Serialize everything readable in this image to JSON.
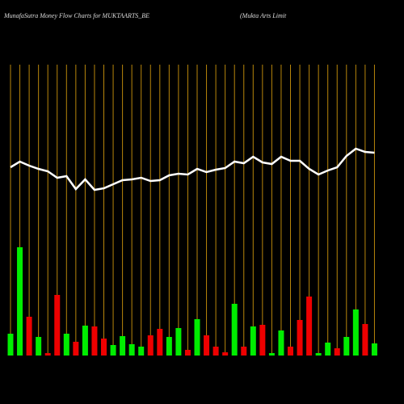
{
  "chart_data": {
    "type": "bar-line",
    "title": "MunafaSutra  Money Flow  Charts for MUKTAARTS_BE",
    "subtitle": "(Mukta  Arts Limit",
    "categories": [
      null,
      null,
      null,
      null,
      null,
      null,
      null,
      null,
      null,
      null,
      null,
      null,
      null,
      null,
      null,
      null,
      null,
      null,
      null,
      null,
      null,
      null,
      null,
      null,
      null,
      null,
      null,
      null,
      null,
      null,
      null,
      null,
      null,
      null,
      null,
      null,
      null,
      null,
      null,
      null
    ],
    "ylim": [
      0,
      360
    ],
    "grid": true,
    "grid_color": "#b8860b",
    "background": "#000000",
    "series": [
      {
        "type": "bar",
        "colors": [
          "#00ee00",
          "#00ee00",
          "#ee0000",
          "#00ee00",
          "#ee0000",
          "#ee0000",
          "#00ee00",
          "#ee0000",
          "#00ee00",
          "#ee0000",
          "#ee0000",
          "#00ee00",
          "#00ee00",
          "#00ee00",
          "#00ee00",
          "#ee0000",
          "#ee0000",
          "#00ee00",
          "#00ee00",
          "#ee0000",
          "#00ee00",
          "#ee0000",
          "#ee0000",
          "#ee0000",
          "#00ee00",
          "#ee0000",
          "#00ee00",
          "#ee0000",
          "#00ee00",
          "#00ee00",
          "#ee0000",
          "#ee0000",
          "#ee0000",
          "#00ee00",
          "#00ee00",
          "#ee0000",
          "#00ee00",
          "#00ee00",
          "#ee0000",
          "#00ee00"
        ],
        "values": [
          27,
          134,
          48,
          23,
          3,
          75,
          27,
          17,
          37,
          36,
          21,
          13,
          24,
          14,
          11,
          25,
          33,
          23,
          34,
          7,
          45,
          25,
          11,
          4,
          64,
          11,
          36,
          38,
          3,
          31,
          11,
          44,
          73,
          3,
          16,
          9,
          23,
          57,
          39,
          15
        ]
      },
      {
        "type": "line",
        "color": "#ffffff",
        "values": [
          233,
          240,
          235,
          231,
          228,
          220,
          222,
          206,
          218,
          205,
          207,
          212,
          217,
          218,
          220,
          216,
          217,
          223,
          225,
          224,
          231,
          227,
          230,
          232,
          240,
          238,
          246,
          239,
          237,
          246,
          241,
          241,
          231,
          224,
          229,
          233,
          247,
          256,
          252,
          251
        ]
      }
    ]
  }
}
